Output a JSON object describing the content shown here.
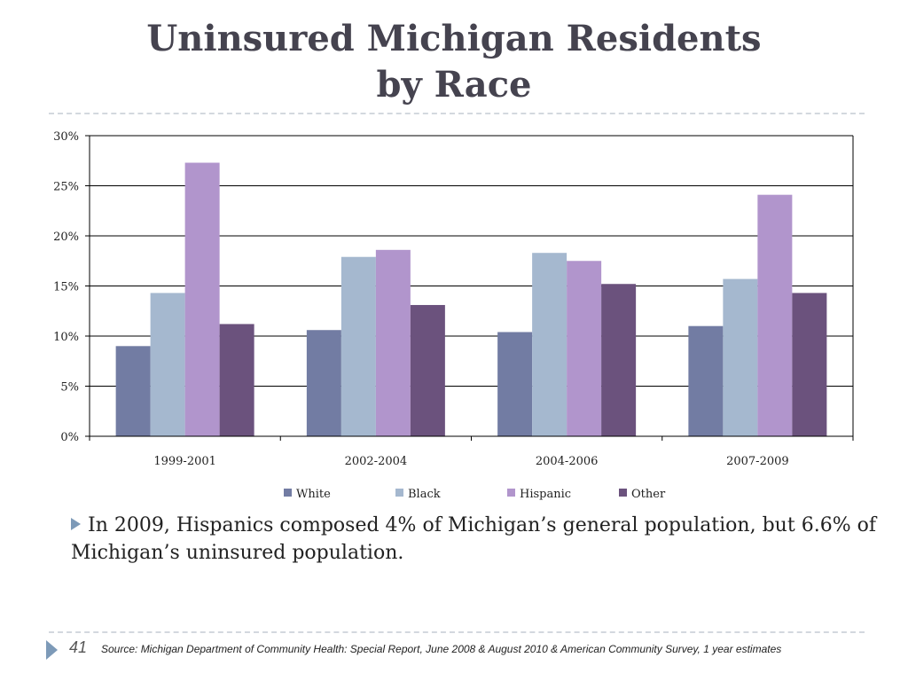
{
  "title": {
    "line1": "Uninsured Michigan Residents",
    "line2": "by Race"
  },
  "chart_data": {
    "type": "bar",
    "categories": [
      "1999-2001",
      "2002-2004",
      "2004-2006",
      "2007-2009"
    ],
    "series": [
      {
        "name": "White",
        "color": "#727ca3",
        "values": [
          9.0,
          10.6,
          10.4,
          11.0
        ]
      },
      {
        "name": "Black",
        "color": "#a5b8cf",
        "values": [
          14.3,
          17.9,
          18.3,
          15.7
        ]
      },
      {
        "name": "Hispanic",
        "color": "#b195cc",
        "values": [
          27.3,
          18.6,
          17.5,
          24.1
        ]
      },
      {
        "name": "Other",
        "color": "#6b527d",
        "values": [
          11.2,
          13.1,
          15.2,
          14.3
        ]
      }
    ],
    "ylim": [
      0,
      30
    ],
    "yticks": [
      "0%",
      "5%",
      "10%",
      "15%",
      "20%",
      "25%",
      "30%"
    ],
    "ytick_values": [
      0,
      5,
      10,
      15,
      20,
      25,
      30
    ],
    "grid": true,
    "legend_position": "bottom",
    "title": "",
    "xlabel": "",
    "ylabel": ""
  },
  "bullet": {
    "text": "In 2009, Hispanics composed 4% of Michigan’s general population, but 6.6% of Michigan’s uninsured population."
  },
  "footer": {
    "page_number": "41",
    "source": "Source:  Michigan Department of Community Health: Special Report, June 2008 & August 2010 & American Community Survey, 1 year estimates"
  },
  "colors": {
    "title": "#45434f",
    "accent": "#7d9ab8"
  }
}
